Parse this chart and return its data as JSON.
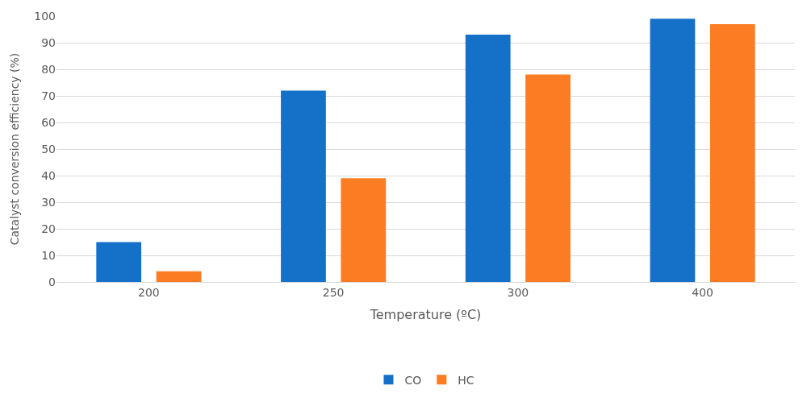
{
  "chart_data": {
    "type": "bar",
    "xlabel": "Temperature (ºC)",
    "ylabel": "Catalyst conversion efficiency (%)",
    "categories": [
      "200",
      "250",
      "300",
      "400"
    ],
    "series": [
      {
        "name": "CO",
        "color": "#1570c8",
        "values": [
          15,
          72,
          93,
          99
        ]
      },
      {
        "name": "HC",
        "color": "#fb7c22",
        "values": [
          4,
          39,
          78,
          97
        ]
      }
    ],
    "ylim": [
      0,
      100
    ],
    "yticks": [
      0,
      10,
      20,
      30,
      40,
      50,
      60,
      70,
      80,
      90,
      100
    ],
    "grid": "y",
    "legend": "bottom"
  }
}
